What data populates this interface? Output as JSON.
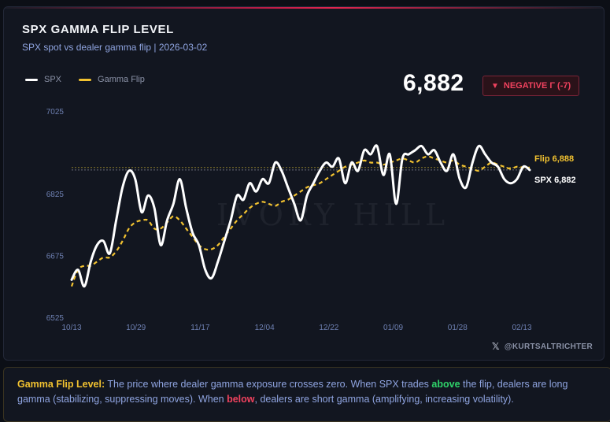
{
  "header": {
    "title": "SPX GAMMA FLIP LEVEL",
    "subtitle": "SPX spot vs dealer gamma flip | 2026-03-02"
  },
  "legend": {
    "spx": "SPX",
    "flip": "Gamma Flip"
  },
  "current": {
    "value": "6,882",
    "badge": "NEGATIVE Γ (-7)"
  },
  "colors": {
    "spx": "#ffffff",
    "flip": "#f2c230",
    "negative": "#f0425e",
    "positive": "#2fd36a",
    "grid": "#1f2431",
    "axis_text": "#6d7fb0"
  },
  "credit": "@KURTSALTRICHTER",
  "note": {
    "label": "Gamma Flip Level:",
    "text1": " The price where dealer gamma exposure crosses zero. When SPX trades ",
    "above": "above",
    "text2": " the flip, dealers are long gamma (stabilizing, suppressing moves). When ",
    "below": "below",
    "text3": ", dealers are short gamma (amplifying, increasing volatility)."
  },
  "chart_data": {
    "type": "line",
    "title": "SPX GAMMA FLIP LEVEL",
    "subtitle": "SPX spot vs dealer gamma flip | 2026-03-02",
    "xlabel": "",
    "ylabel": "",
    "ylim": [
      6525,
      7025
    ],
    "yticks": [
      7025,
      6825,
      6675,
      6525
    ],
    "xticks": [
      "10/13",
      "10/29",
      "11/17",
      "12/04",
      "12/22",
      "01/09",
      "01/28",
      "02/13"
    ],
    "grid": false,
    "legend_position": "top-left",
    "reference_lines": [
      {
        "label": "Flip 6,888",
        "value": 6888
      },
      {
        "label": "SPX 6,882",
        "value": 6882
      }
    ],
    "series": [
      {
        "name": "SPX",
        "values": [
          6616,
          6640,
          6600,
          6660,
          6700,
          6710,
          6680,
          6760,
          6840,
          6880,
          6860,
          6780,
          6820,
          6790,
          6700,
          6760,
          6800,
          6860,
          6790,
          6730,
          6700,
          6640,
          6620,
          6660,
          6710,
          6760,
          6820,
          6810,
          6850,
          6830,
          6860,
          6850,
          6900,
          6880,
          6840,
          6800,
          6760,
          6820,
          6850,
          6880,
          6900,
          6890,
          6910,
          6850,
          6900,
          6880,
          6930,
          6920,
          6940,
          6870,
          6920,
          6800,
          6910,
          6920,
          6930,
          6940,
          6920,
          6930,
          6900,
          6880,
          6920,
          6860,
          6840,
          6900,
          6940,
          6920,
          6900,
          6890,
          6860,
          6850,
          6860,
          6890,
          6882
        ]
      },
      {
        "name": "Gamma Flip",
        "values": [
          6600,
          6640,
          6650,
          6650,
          6660,
          6670,
          6670,
          6685,
          6710,
          6740,
          6755,
          6760,
          6760,
          6740,
          6740,
          6755,
          6770,
          6760,
          6740,
          6720,
          6700,
          6690,
          6690,
          6700,
          6720,
          6740,
          6760,
          6775,
          6790,
          6800,
          6805,
          6800,
          6795,
          6805,
          6810,
          6820,
          6830,
          6840,
          6845,
          6850,
          6860,
          6870,
          6880,
          6890,
          6895,
          6900,
          6905,
          6900,
          6900,
          6895,
          6900,
          6905,
          6910,
          6905,
          6900,
          6910,
          6915,
          6910,
          6905,
          6900,
          6905,
          6895,
          6890,
          6885,
          6880,
          6890,
          6900,
          6895,
          6890,
          6885,
          6890,
          6888,
          6888
        ]
      }
    ]
  }
}
